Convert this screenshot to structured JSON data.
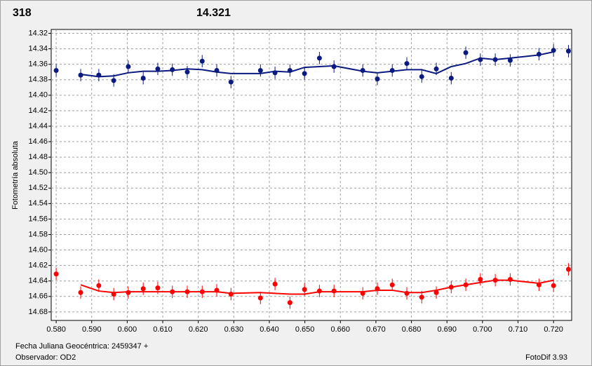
{
  "chart_data": {
    "type": "scatter",
    "title": "318",
    "subtitle": "14.321",
    "title_color": "#ff0000",
    "subtitle_color": "#0a1a80",
    "y_label": "Fotometría absoluta",
    "x_label": "Fecha Juliana Geocéntrica: 2459347 +",
    "observer": "Observador: OD2",
    "software": "FotoDif 3.93",
    "xlim": [
      0.5786,
      0.7251
    ],
    "ylim": [
      14.315,
      14.691
    ],
    "y_inverted": true,
    "grid": true,
    "xticks": [
      {
        "value": 0.58,
        "label": "0.580"
      },
      {
        "value": 0.59,
        "label": "0.590"
      },
      {
        "value": 0.6,
        "label": "0.600"
      },
      {
        "value": 0.61,
        "label": "0.610"
      },
      {
        "value": 0.62,
        "label": "0.620"
      },
      {
        "value": 0.63,
        "label": "0.630"
      },
      {
        "value": 0.64,
        "label": "0.640"
      },
      {
        "value": 0.65,
        "label": "0.650"
      },
      {
        "value": 0.66,
        "label": "0.660"
      },
      {
        "value": 0.67,
        "label": "0.670"
      },
      {
        "value": 0.68,
        "label": "0.680"
      },
      {
        "value": 0.69,
        "label": "0.690"
      },
      {
        "value": 0.7,
        "label": "0.700"
      },
      {
        "value": 0.71,
        "label": "0.710"
      },
      {
        "value": 0.72,
        "label": "0.720"
      }
    ],
    "yticks": [
      14.32,
      14.34,
      14.36,
      14.38,
      {
        "value": 14.4,
        "label": "14.40"
      },
      14.42,
      14.44,
      14.46,
      14.48,
      {
        "value": 14.5,
        "label": "14.50"
      },
      14.52,
      14.54,
      14.56,
      14.58,
      {
        "value": 14.6,
        "label": "14.60"
      },
      14.62,
      14.64,
      14.66,
      14.68
    ],
    "x": [
      0.58,
      0.5869,
      0.592,
      0.5962,
      0.6003,
      0.6045,
      0.6086,
      0.6127,
      0.6169,
      0.6211,
      0.6252,
      0.6292,
      0.6375,
      0.6416,
      0.6458,
      0.6499,
      0.6541,
      0.6582,
      0.6663,
      0.6704,
      0.6746,
      0.6787,
      0.6829,
      0.687,
      0.6912,
      0.6953,
      0.6994,
      0.7036,
      0.7078,
      0.7159,
      0.72,
      0.7242
    ],
    "series": [
      {
        "mode": "markers",
        "color": "#0a1a80",
        "error": 0.008,
        "values": [
          14.368,
          14.374,
          14.374,
          14.381,
          14.363,
          14.378,
          14.366,
          14.367,
          14.37,
          14.356,
          14.368,
          14.383,
          14.368,
          14.371,
          14.368,
          14.372,
          14.352,
          14.363,
          14.368,
          14.379,
          14.368,
          14.359,
          14.376,
          14.366,
          14.378,
          14.345,
          14.354,
          14.354,
          14.355,
          14.347,
          14.342,
          14.343
        ]
      },
      {
        "mode": "line",
        "color": "#0a1a80",
        "values": [
          null,
          14.373,
          14.376,
          14.375,
          14.371,
          14.369,
          14.369,
          14.368,
          14.366,
          14.367,
          14.37,
          14.372,
          14.372,
          14.369,
          14.37,
          14.364,
          14.363,
          14.362,
          14.369,
          14.371,
          14.369,
          14.367,
          14.367,
          14.372,
          14.363,
          14.359,
          14.352,
          14.354,
          14.352,
          14.348,
          14.344,
          null
        ]
      },
      {
        "mode": "markers",
        "color": "#ff0000",
        "error": 0.008,
        "values": [
          14.631,
          14.655,
          14.646,
          14.657,
          14.655,
          14.65,
          14.649,
          14.654,
          14.654,
          14.654,
          14.652,
          14.657,
          14.662,
          14.644,
          14.668,
          14.651,
          14.653,
          14.653,
          14.656,
          14.65,
          14.645,
          14.656,
          14.661,
          14.655,
          14.648,
          14.645,
          14.638,
          14.639,
          14.638,
          14.645,
          14.646,
          14.625
        ]
      },
      {
        "mode": "line",
        "color": "#ff0000",
        "values": [
          null,
          14.645,
          14.653,
          14.655,
          14.654,
          14.654,
          14.654,
          14.654,
          14.654,
          14.654,
          14.654,
          14.656,
          14.655,
          14.656,
          14.657,
          14.657,
          14.654,
          14.654,
          14.654,
          14.652,
          14.652,
          14.655,
          14.655,
          14.652,
          14.648,
          14.645,
          14.642,
          14.639,
          14.639,
          14.643,
          14.639,
          null
        ]
      }
    ]
  }
}
